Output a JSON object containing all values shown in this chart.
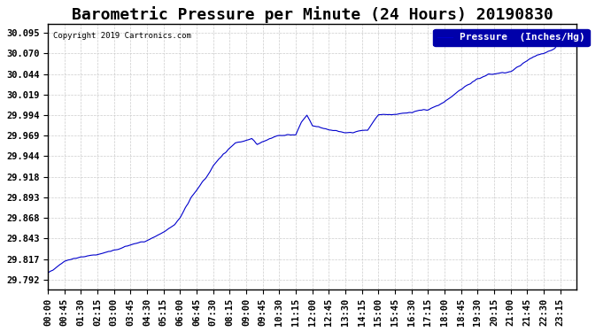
{
  "title": "Barometric Pressure per Minute (24 Hours) 20190830",
  "copyright_text": "Copyright 2019 Cartronics.com",
  "legend_label": "Pressure  (Inches/Hg)",
  "line_color": "#0000cc",
  "legend_bg_color": "#0000aa",
  "legend_text_color": "#ffffff",
  "background_color": "#ffffff",
  "grid_color": "#cccccc",
  "yticks": [
    29.792,
    29.817,
    29.843,
    29.868,
    29.893,
    29.918,
    29.944,
    29.969,
    29.994,
    30.019,
    30.044,
    30.07,
    30.095
  ],
  "ylim": [
    29.78,
    30.105
  ],
  "xtick_labels": [
    "00:00",
    "00:45",
    "01:30",
    "02:15",
    "03:00",
    "03:45",
    "04:30",
    "05:15",
    "06:00",
    "06:45",
    "07:30",
    "08:15",
    "09:00",
    "09:45",
    "10:30",
    "11:15",
    "12:00",
    "12:45",
    "13:30",
    "14:15",
    "15:00",
    "15:45",
    "16:30",
    "17:15",
    "18:00",
    "18:45",
    "19:30",
    "20:15",
    "21:00",
    "21:45",
    "22:30",
    "23:15"
  ],
  "title_fontsize": 13,
  "tick_fontsize": 7.5,
  "legend_fontsize": 8
}
